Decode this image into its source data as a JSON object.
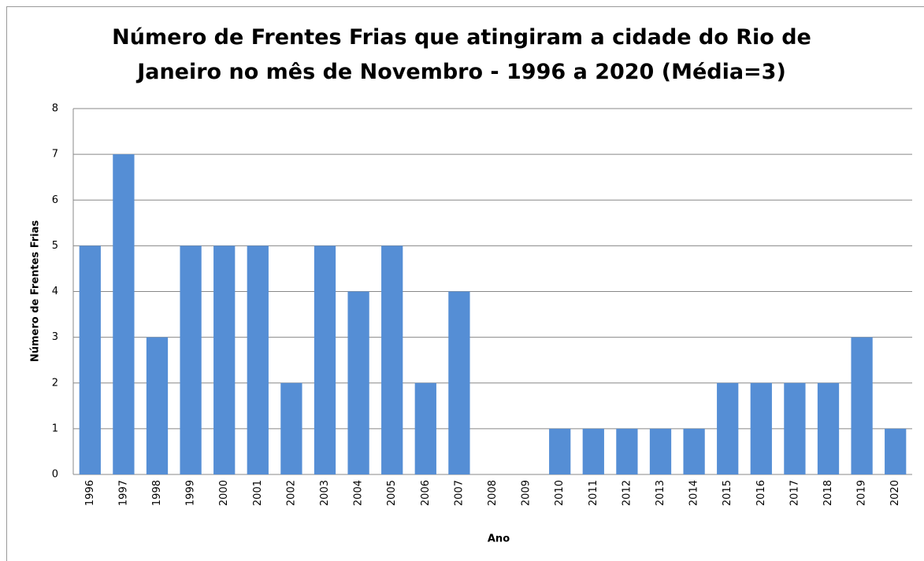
{
  "chart_data": {
    "type": "bar",
    "title": "Número de Frentes Frias que atingiram a cidade do Rio de Janeiro no mês de Novembro - 1996 a 2020 (Média=3)",
    "x_label": "Ano",
    "y_label": "Número de Frentes Frias",
    "categories": [
      "1996",
      "1997",
      "1998",
      "1999",
      "2000",
      "2001",
      "2002",
      "2003",
      "2004",
      "2005",
      "2006",
      "2007",
      "2008",
      "2009",
      "2010",
      "2011",
      "2012",
      "2013",
      "2014",
      "2015",
      "2016",
      "2017",
      "2018",
      "2019",
      "2020"
    ],
    "values": [
      5,
      7,
      3,
      5,
      5,
      5,
      2,
      5,
      4,
      5,
      2,
      4,
      0,
      0,
      1,
      1,
      1,
      1,
      1,
      2,
      2,
      2,
      2,
      3,
      1
    ],
    "color": "#558ed5",
    "ylim": [
      0,
      8
    ],
    "yticks": [
      0,
      1,
      2,
      3,
      4,
      5,
      6,
      7,
      8
    ],
    "grid": true
  }
}
